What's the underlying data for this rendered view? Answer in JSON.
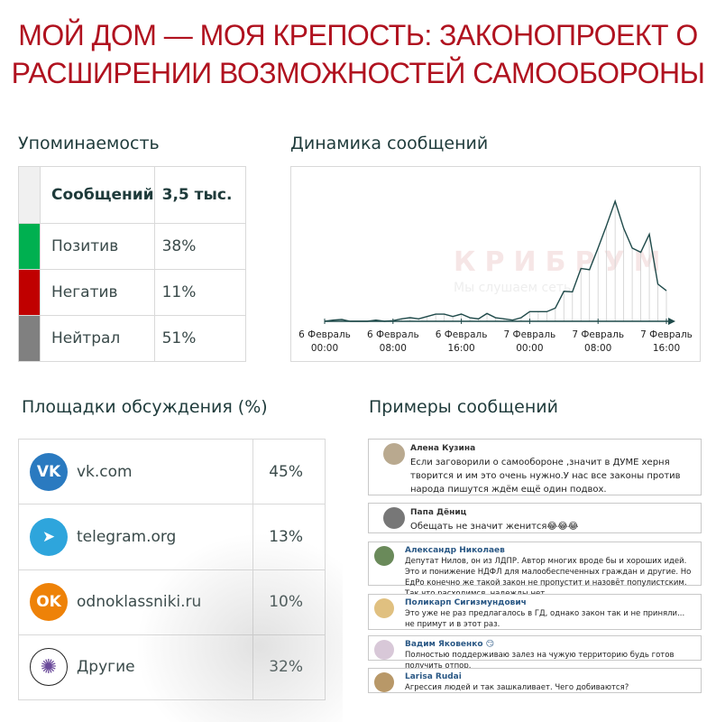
{
  "title": {
    "line1": "МОЙ ДОМ — МОЯ КРЕПОСТЬ: ЗАКОНОПРОЕКТ О",
    "line2": "РАСШИРЕНИИ ВОЗМОЖНОСТЕЙ САМООБОРОНЫ"
  },
  "mentions": {
    "heading": "Упоминаемость",
    "header_label": "Сообщений",
    "header_value": "3,5 тыс.",
    "rows": [
      {
        "label": "Позитив",
        "value": "38%",
        "color": "#00b050"
      },
      {
        "label": "Негатив",
        "value": "11%",
        "color": "#c00000"
      },
      {
        "label": "Нейтрал",
        "value": "51%",
        "color": "#808080"
      }
    ]
  },
  "dynamics": {
    "heading": "Динамика сообщений",
    "watermark": "КРИБРУМ",
    "watermark_sub": "Мы слушаем сеть"
  },
  "chart_data": {
    "type": "area",
    "title": "Динамика сообщений",
    "xlabel": "",
    "ylabel": "",
    "grid": false,
    "x_ticks": [
      {
        "line1": "6 Февраль",
        "line2": "00:00"
      },
      {
        "line1": "6 Февраль",
        "line2": "08:00"
      },
      {
        "line1": "6 Февраль",
        "line2": "16:00"
      },
      {
        "line1": "7 Февраль",
        "line2": "00:00"
      },
      {
        "line1": "7 Февраль",
        "line2": "08:00"
      },
      {
        "line1": "7 Февраль",
        "line2": "16:00"
      }
    ],
    "x_hours_range": [
      0,
      40
    ],
    "values": [
      0,
      1,
      1.5,
      0,
      0,
      0,
      1,
      0,
      0.5,
      2,
      3,
      2,
      4,
      6,
      6,
      4,
      6,
      3,
      2,
      6.5,
      3,
      2,
      1,
      3,
      8,
      8,
      8,
      11,
      25,
      24.5,
      44,
      43,
      61,
      80,
      100,
      77.5,
      61,
      57.5,
      72.5,
      31,
      25.5
    ],
    "ylim": [
      0,
      100
    ],
    "color": "#1f4a4a"
  },
  "platforms": {
    "heading": "Площадки обсуждения (%)",
    "rows": [
      {
        "name": "vk.com",
        "value": "45%",
        "icon": "vk-icon",
        "color": "#2a7ac0"
      },
      {
        "name": "telegram.org",
        "value": "13%",
        "icon": "telegram-icon",
        "color": "#2ea5dc"
      },
      {
        "name": "odnoklassniki.ru",
        "value": "10%",
        "icon": "odnoklassniki-icon",
        "color": "#ee8208"
      },
      {
        "name": "Другие",
        "value": "32%",
        "icon": "network-globe-icon",
        "color": "#6a4a9a"
      }
    ]
  },
  "examples": {
    "heading": "Примеры сообщений",
    "messages": [
      {
        "name": "Алена Кузина",
        "text": "Если заговорили о самообороне ,значит в ДУМЕ херня творится и им это очень нужно.У нас все законы против народа пишутся ждём ещё один подвох."
      },
      {
        "name": "Папа Дёниц",
        "text": "Обещать не значит женится😂😂😂"
      },
      {
        "name": "Александр Николаев",
        "text": "Депутат Нилов, он из ЛДПР. Автор многих вроде бы и хороших идей. Это и понижение НДФЛ для малообеспеченных граждан и другие. Но ЕдРо конечно же такой закон не пропустит и назовёт популистским. Так что расходимся, надежды нет."
      },
      {
        "name": "Поликарп Сигизмундович",
        "text": "Это уже не раз предлагалось в ГД, однако закон так и не приняли... не примут и в этот раз."
      },
      {
        "name": "Вадим Яковенко 😏",
        "text": "Полностью поддерживаю залез на чужую территорию будь готов получить отпор."
      },
      {
        "name": "Larisa Rudai",
        "text": "Агрессия людей и так зашкаливает. Чего добиваются?"
      }
    ]
  }
}
